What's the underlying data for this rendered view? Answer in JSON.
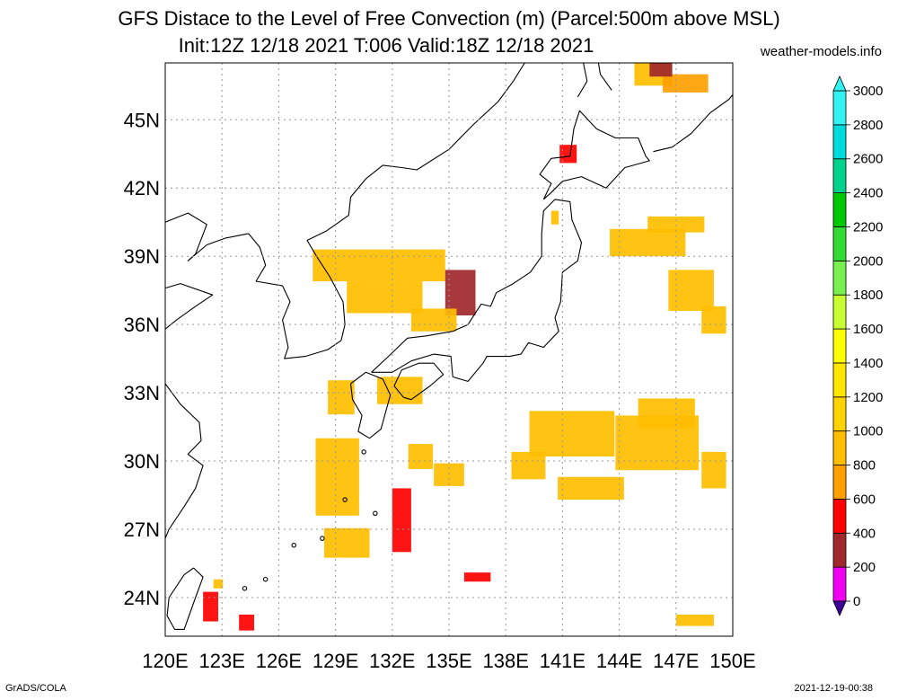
{
  "title_line1": "GFS Distace to the Level of Free Convection (m) (Parcel:500m above MSL)",
  "title_line2": "Init:12Z 12/18 2021 T:006 Valid:18Z 12/18 2021",
  "credit": "weather-models.info",
  "software": "GrADS/COLA",
  "timestamp": "2021-12-19-00:38",
  "map": {
    "lon_range": [
      120,
      150
    ],
    "lat_range": [
      22.3,
      47.5
    ],
    "lon_ticks": [
      "120E",
      "123E",
      "126E",
      "129E",
      "132E",
      "135E",
      "138E",
      "141E",
      "144E",
      "147E",
      "150E"
    ],
    "lat_ticks": [
      "24N",
      "27N",
      "30N",
      "33N",
      "36N",
      "39N",
      "42N",
      "45N"
    ],
    "grid": true
  },
  "colorbar": {
    "levels": [
      "0",
      "200",
      "400",
      "600",
      "800",
      "1000",
      "1200",
      "1400",
      "1600",
      "1800",
      "2000",
      "2200",
      "2400",
      "2600",
      "2800",
      "3000"
    ],
    "colors": [
      "#3c0096",
      "#f000f0",
      "#a0282d",
      "#ff0000",
      "#ffa000",
      "#ffbe00",
      "#ffd200",
      "#ffe600",
      "#ffff00",
      "#c8ff32",
      "#78f050",
      "#32dc32",
      "#00c800",
      "#00d28c",
      "#00dcdc",
      "#33f2f2"
    ],
    "under_color": "#3c0096",
    "over_color": "#33f2f2"
  }
}
